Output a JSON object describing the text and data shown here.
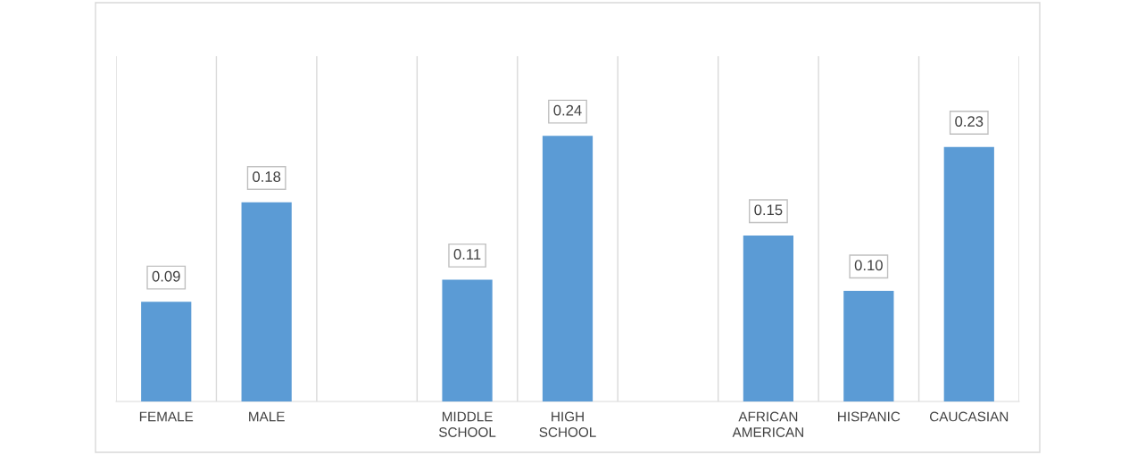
{
  "chart_data": {
    "type": "bar",
    "categories": [
      "FEMALE",
      "MALE",
      null,
      "MIDDLE SCHOOL",
      "HIGH SCHOOL",
      null,
      "AFRICAN AMERICAN",
      "HISPANIC",
      "CAUCASIAN"
    ],
    "values": [
      0.09,
      0.18,
      null,
      0.11,
      0.24,
      null,
      0.15,
      0.1,
      0.23
    ],
    "value_labels": [
      "0.09",
      "0.18",
      null,
      "0.11",
      "0.24",
      null,
      "0.15",
      "0.10",
      "0.23"
    ],
    "color": "#5b9bd5",
    "grid": "x",
    "legend": false
  }
}
